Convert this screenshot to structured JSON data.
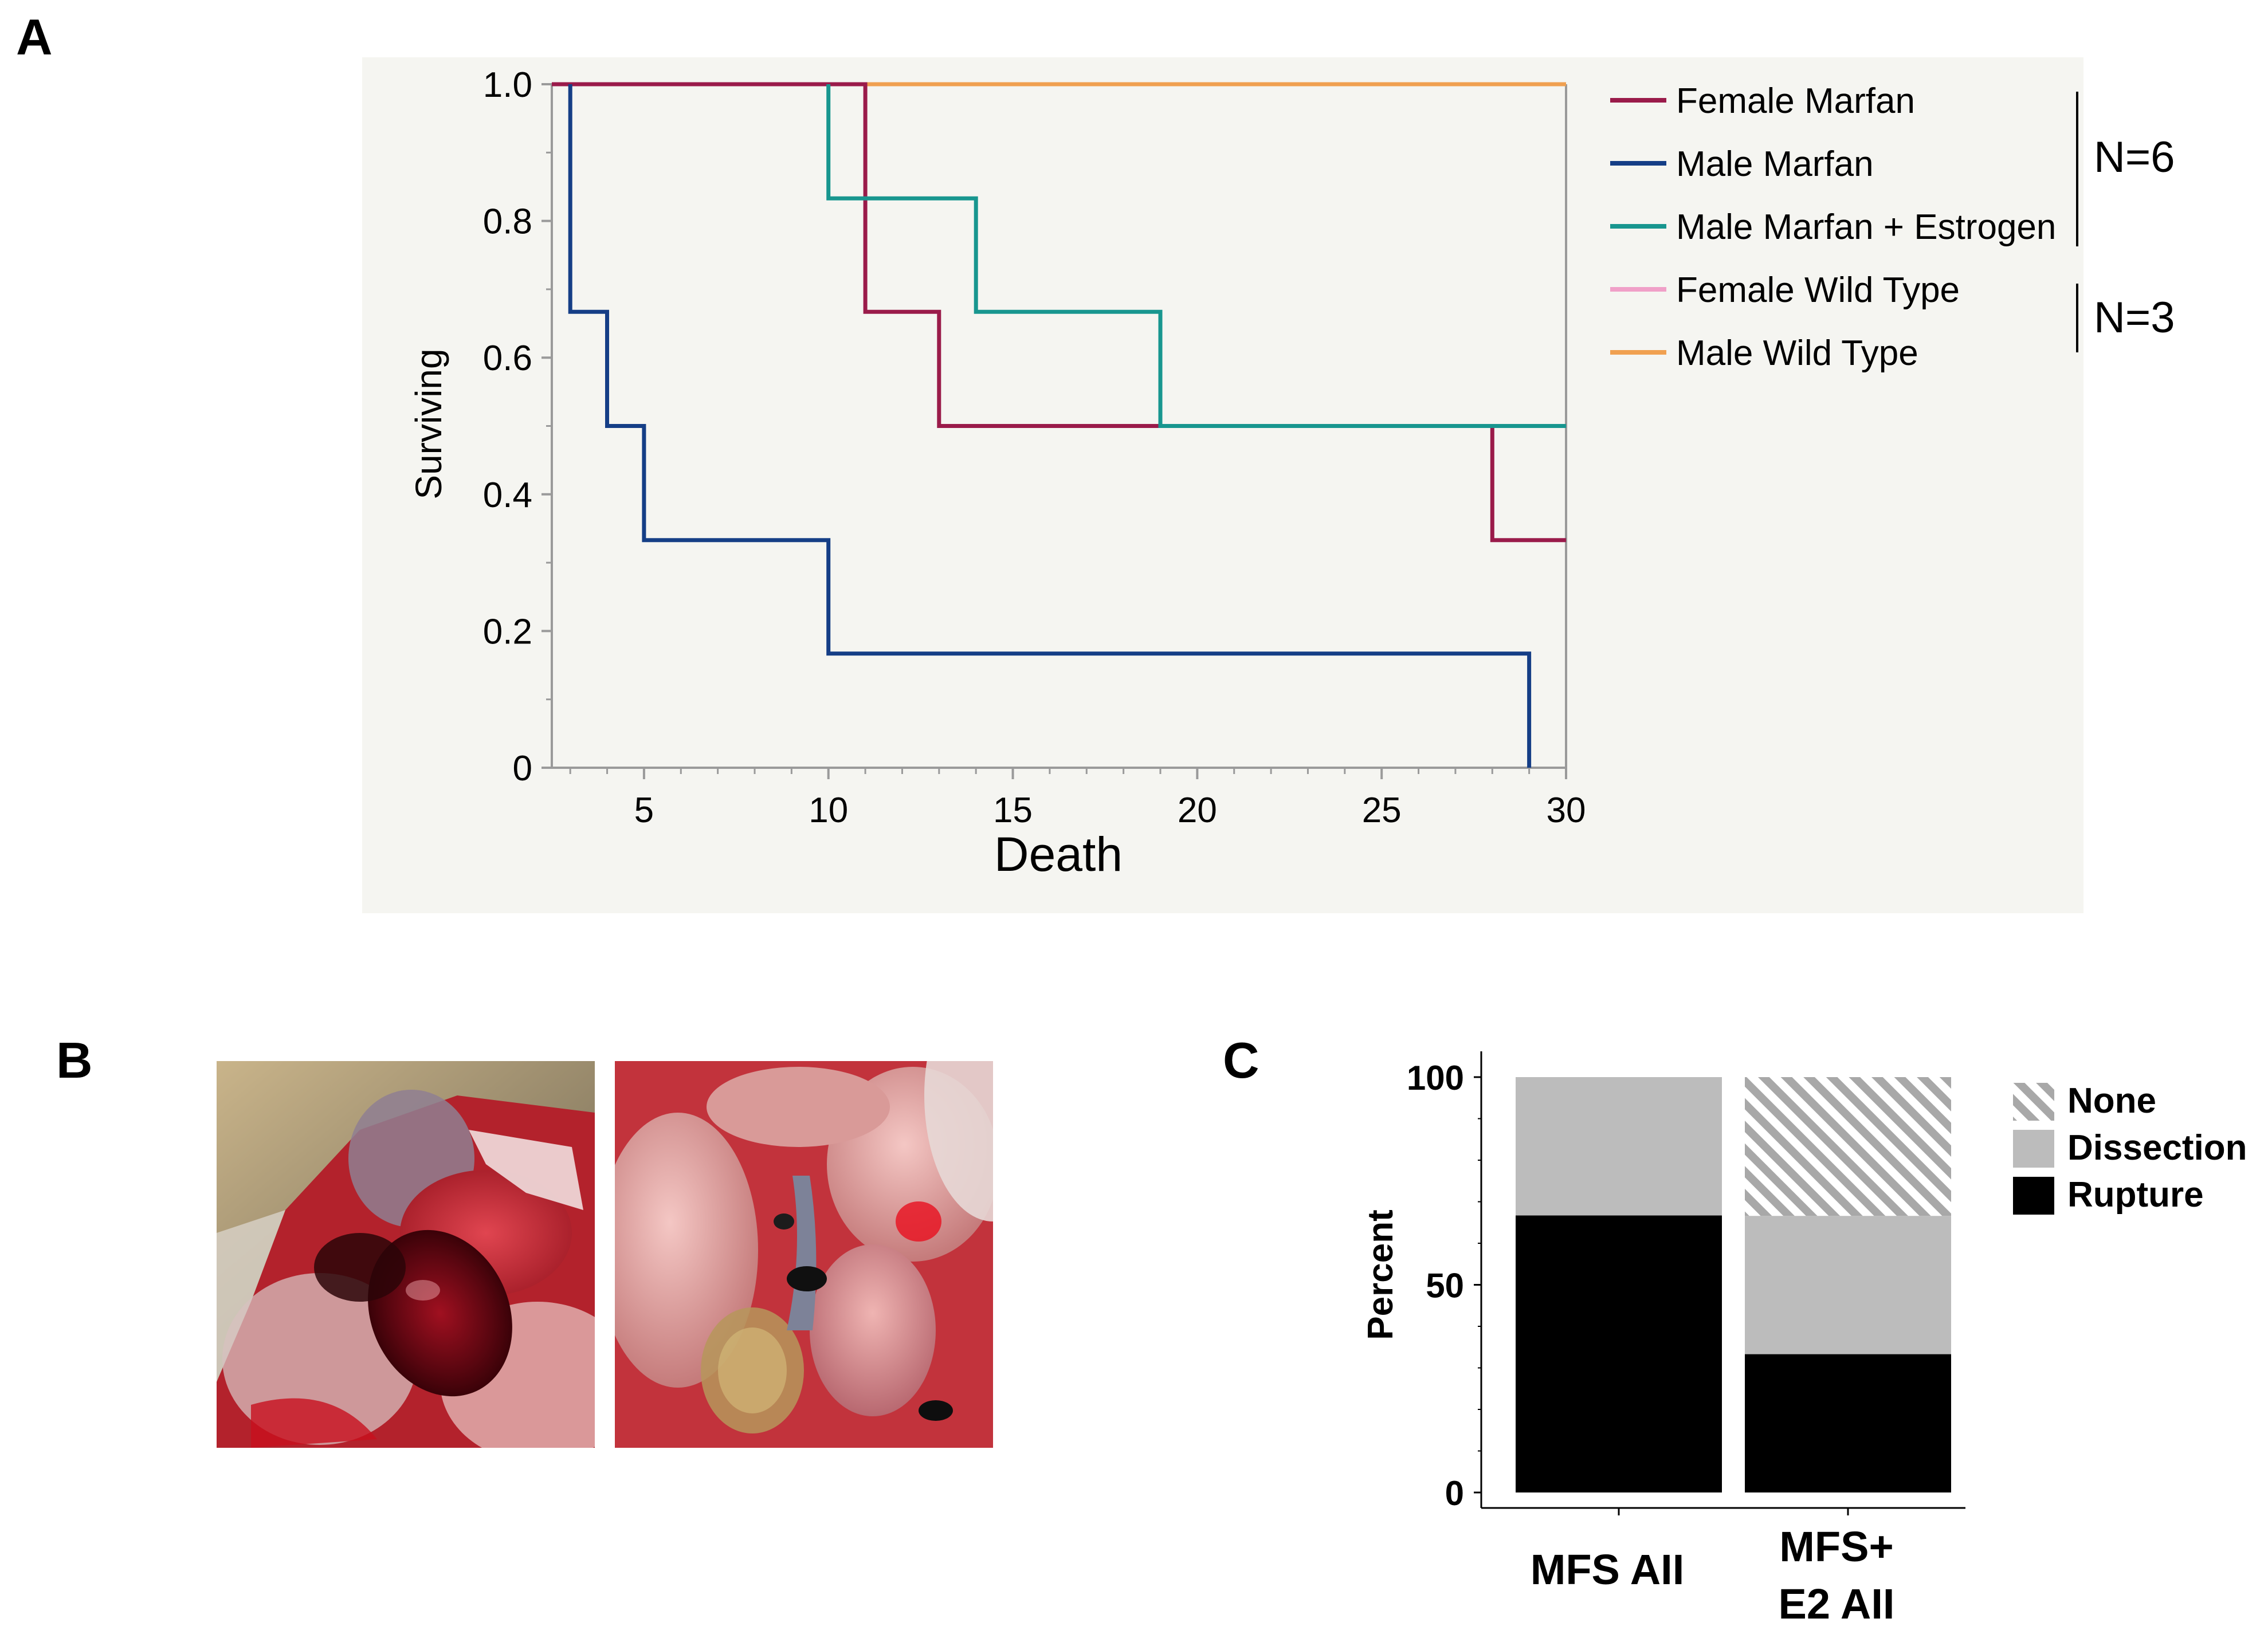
{
  "panels": {
    "a": "A",
    "b": "B",
    "c": "C"
  },
  "colors": {
    "female_marfan": "#9a1b4a",
    "male_marfan": "#153e86",
    "male_marfan_estrogen": "#18968f",
    "female_wild_type": "#f0a0c8",
    "male_wild_type": "#f0a050",
    "plot_bg": "#f5f5f1",
    "rupture": "#000000",
    "dissection": "#bcbcbc",
    "none_hatch": "#a8a8a8"
  },
  "chart_data": [
    {
      "type": "line",
      "step": true,
      "xlabel": "Death",
      "ylabel": "Surviving",
      "xlim": [
        2.5,
        30
      ],
      "ylim": [
        0,
        1
      ],
      "xticks": [
        "5",
        "10",
        "15",
        "20",
        "25",
        "30"
      ],
      "yticks": [
        "0",
        "0.2",
        "0.4",
        "0.6",
        "0.8",
        "1.0"
      ],
      "series": [
        {
          "name": "Female Wild Type",
          "color_key": "female_wild_type",
          "points": [
            [
              2.5,
              1.0
            ],
            [
              30,
              1.0
            ]
          ]
        },
        {
          "name": "Male Wild Type",
          "color_key": "male_wild_type",
          "points": [
            [
              2.5,
              1.0
            ],
            [
              30,
              1.0
            ]
          ]
        },
        {
          "name": "Female Marfan",
          "color_key": "female_marfan",
          "points": [
            [
              2.5,
              1.0
            ],
            [
              11,
              1.0
            ],
            [
              11,
              0.667
            ],
            [
              13,
              0.667
            ],
            [
              13,
              0.5
            ],
            [
              28,
              0.5
            ],
            [
              28,
              0.333
            ],
            [
              30,
              0.333
            ]
          ]
        },
        {
          "name": "Male Marfan + Estrogen",
          "color_key": "male_marfan_estrogen",
          "points": [
            [
              10,
              1.0
            ],
            [
              10,
              0.833
            ],
            [
              14,
              0.833
            ],
            [
              14,
              0.667
            ],
            [
              19,
              0.667
            ],
            [
              19,
              0.5
            ],
            [
              30,
              0.5
            ]
          ]
        },
        {
          "name": "Male Marfan",
          "color_key": "male_marfan",
          "points": [
            [
              3,
              1.0
            ],
            [
              3,
              0.667
            ],
            [
              4,
              0.667
            ],
            [
              4,
              0.5
            ],
            [
              5,
              0.5
            ],
            [
              5,
              0.333
            ],
            [
              10,
              0.333
            ],
            [
              10,
              0.167
            ],
            [
              29,
              0.167
            ],
            [
              29,
              0.0
            ]
          ]
        }
      ],
      "legend": [
        "Female Marfan",
        "Male Marfan",
        "Male Marfan + Estrogen",
        "Female Wild Type",
        "Male Wild Type"
      ],
      "legend_colors": [
        "female_marfan",
        "male_marfan",
        "male_marfan_estrogen",
        "female_wild_type",
        "male_wild_type"
      ],
      "group_labels": [
        "N=6",
        "N=3"
      ]
    },
    {
      "type": "bar",
      "stacked": true,
      "ylabel": "Percent",
      "ylim": [
        0,
        100
      ],
      "yticks": [
        "0",
        "50",
        "100"
      ],
      "categories": [
        "MFS AII",
        "MFS+ E2 AII"
      ],
      "category_lines": [
        [
          "MFS AII"
        ],
        [
          "MFS+",
          "E2 AII"
        ]
      ],
      "series": [
        {
          "name": "Rupture",
          "color_key": "rupture",
          "values": [
            66.7,
            33.3
          ]
        },
        {
          "name": "Dissection",
          "color_key": "dissection",
          "values": [
            33.3,
            33.3
          ]
        },
        {
          "name": "None",
          "color_key": "none_hatch",
          "values": [
            0,
            33.4
          ],
          "pattern": "hatch"
        }
      ],
      "legend": [
        "None",
        "Dissection",
        "Rupture"
      ],
      "legend_keys": [
        "none_hatch",
        "dissection",
        "rupture"
      ]
    }
  ]
}
